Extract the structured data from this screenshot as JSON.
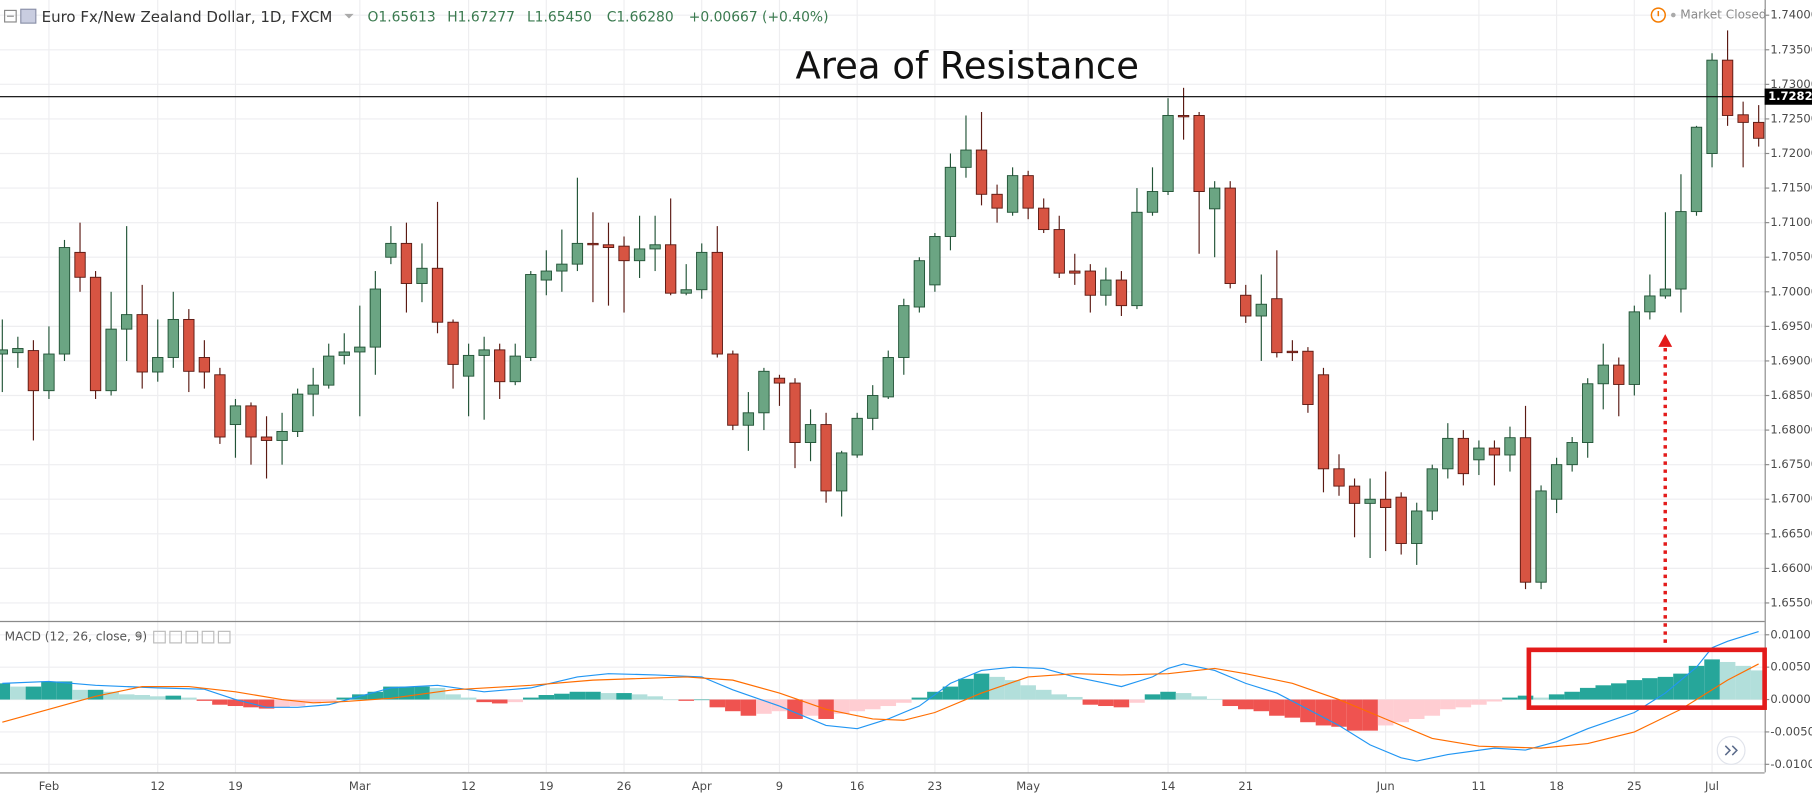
{
  "header": {
    "symbol": "Euro Fx/New Zealand Dollar, 1D, FXCM",
    "ohlc": [
      "O1.65613",
      "H1.67277",
      "L1.65450",
      "C1.66280",
      "+0.00667 (+0.40%)"
    ],
    "status": "Market Closed"
  },
  "chart_data": [
    {
      "type": "candlestick",
      "title": "Area of Resistance",
      "up_color": "#6ba583",
      "down_color": "#d75442",
      "up_border": "#225437",
      "down_border": "#5b1a13",
      "grid": true,
      "ylim": [
        1.6524,
        1.7422
      ],
      "yticks": [
        {
          "value": 1.655,
          "label": "1.65500"
        },
        {
          "value": 1.66,
          "label": "1.66000"
        },
        {
          "value": 1.665,
          "label": "1.66500"
        },
        {
          "value": 1.67,
          "label": "1.67000"
        },
        {
          "value": 1.675,
          "label": "1.67500"
        },
        {
          "value": 1.68,
          "label": "1.68000"
        },
        {
          "value": 1.685,
          "label": "1.68500"
        },
        {
          "value": 1.69,
          "label": "1.69000"
        },
        {
          "value": 1.695,
          "label": "1.69500"
        },
        {
          "value": 1.7,
          "label": "1.70000"
        },
        {
          "value": 1.705,
          "label": "1.70500"
        },
        {
          "value": 1.71,
          "label": "1.71000"
        },
        {
          "value": 1.715,
          "label": "1.71500"
        },
        {
          "value": 1.72,
          "label": "1.72000"
        },
        {
          "value": 1.725,
          "label": "1.72500"
        },
        {
          "value": 1.73,
          "label": "1.73000"
        },
        {
          "value": 1.735,
          "label": "1.73500"
        },
        {
          "value": 1.74,
          "label": "1.74000"
        }
      ],
      "xticks": [
        {
          "value": 3,
          "label": "Feb"
        },
        {
          "value": 10,
          "label": "12"
        },
        {
          "value": 15,
          "label": "19"
        },
        {
          "value": 23,
          "label": "Mar"
        },
        {
          "value": 30,
          "label": "12"
        },
        {
          "value": 35,
          "label": "19"
        },
        {
          "value": 40,
          "label": "26"
        },
        {
          "value": 45,
          "label": "Apr"
        },
        {
          "value": 50,
          "label": "9"
        },
        {
          "value": 55,
          "label": "16"
        },
        {
          "value": 60,
          "label": "23"
        },
        {
          "value": 66,
          "label": "May"
        },
        {
          "value": 75,
          "label": "14"
        },
        {
          "value": 80,
          "label": "21"
        },
        {
          "value": 89,
          "label": "Jun"
        },
        {
          "value": 95,
          "label": "11"
        },
        {
          "value": 100,
          "label": "18"
        },
        {
          "value": 105,
          "label": "25"
        },
        {
          "value": 110,
          "label": "Jul"
        }
      ],
      "hline": {
        "value": 1.72822,
        "label": "1.72822"
      },
      "open": [
        1.691,
        1.6912,
        1.6915,
        1.6857,
        1.691,
        1.7057,
        1.7021,
        1.6857,
        1.6946,
        1.6967,
        1.6884,
        1.6905,
        1.696,
        1.6905,
        1.688,
        1.6808,
        1.6835,
        1.679,
        1.6785,
        1.6798,
        1.6852,
        1.6865,
        1.6908,
        1.6913,
        1.692,
        1.705,
        1.707,
        1.7012,
        1.7034,
        1.6956,
        1.6878,
        1.6908,
        1.6916,
        1.687,
        1.6905,
        1.7017,
        1.703,
        1.704,
        1.707,
        1.7068,
        1.7066,
        1.7045,
        1.7062,
        1.7068,
        1.6998,
        1.7003,
        1.7057,
        1.691,
        1.6807,
        1.6825,
        1.6875,
        1.6868,
        1.6782,
        1.6808,
        1.6712,
        1.6764,
        1.6817,
        1.6848,
        1.6905,
        1.6978,
        1.701,
        1.708,
        1.718,
        1.7205,
        1.7141,
        1.7115,
        1.7168,
        1.7121,
        1.709,
        1.703,
        1.703,
        1.6995,
        1.7017,
        1.698,
        1.7115,
        1.7145,
        1.7255,
        1.7255,
        1.712,
        1.715,
        1.6995,
        1.6965,
        1.699,
        1.6914,
        1.6914,
        1.688,
        1.6744,
        1.6719,
        1.6694,
        1.67,
        1.6703,
        1.6636,
        1.6683,
        1.6744,
        1.6788,
        1.6757,
        1.6774,
        1.6764,
        1.6789,
        1.658,
        1.67,
        1.675,
        1.6782,
        1.6867,
        1.6894,
        1.6866,
        1.6971,
        1.6994,
        1.7004,
        1.7116,
        1.72,
        1.7335,
        1.7256,
        1.7245
      ],
      "high": [
        1.696,
        1.6935,
        1.693,
        1.695,
        1.7075,
        1.71,
        1.703,
        1.7,
        1.7095,
        1.701,
        1.696,
        1.7,
        1.6975,
        1.693,
        1.689,
        1.6845,
        1.684,
        1.682,
        1.6825,
        1.686,
        1.689,
        1.6925,
        1.694,
        1.698,
        1.703,
        1.7095,
        1.71,
        1.707,
        1.713,
        1.696,
        1.6925,
        1.6935,
        1.6925,
        1.6925,
        1.703,
        1.706,
        1.709,
        1.7165,
        1.7115,
        1.71,
        1.708,
        1.711,
        1.711,
        1.7135,
        1.704,
        1.707,
        1.7095,
        1.6915,
        1.6855,
        1.689,
        1.688,
        1.6875,
        1.683,
        1.6825,
        1.677,
        1.6825,
        1.6865,
        1.6915,
        1.699,
        1.705,
        1.7085,
        1.72,
        1.7255,
        1.726,
        1.7155,
        1.718,
        1.7175,
        1.7135,
        1.711,
        1.7055,
        1.704,
        1.7035,
        1.703,
        1.715,
        1.718,
        1.728,
        1.7295,
        1.726,
        1.716,
        1.716,
        1.701,
        1.7025,
        1.706,
        1.693,
        1.692,
        1.689,
        1.6765,
        1.673,
        1.673,
        1.674,
        1.671,
        1.6695,
        1.675,
        1.681,
        1.68,
        1.6785,
        1.6785,
        1.6805,
        1.6835,
        1.672,
        1.676,
        1.679,
        1.6875,
        1.6925,
        1.6905,
        1.698,
        1.7025,
        1.7115,
        1.717,
        1.724,
        1.7345,
        1.7378,
        1.7275,
        1.727
      ],
      "low": [
        1.6855,
        1.689,
        1.6785,
        1.6845,
        1.69,
        1.7,
        1.6845,
        1.685,
        1.69,
        1.686,
        1.687,
        1.689,
        1.6855,
        1.686,
        1.678,
        1.676,
        1.675,
        1.673,
        1.675,
        1.679,
        1.682,
        1.686,
        1.6895,
        1.682,
        1.688,
        1.704,
        1.697,
        1.6985,
        1.694,
        1.686,
        1.682,
        1.6815,
        1.6845,
        1.6865,
        1.69,
        1.6995,
        1.7,
        1.703,
        1.6985,
        1.698,
        1.697,
        1.702,
        1.703,
        1.6995,
        1.6995,
        1.699,
        1.6905,
        1.68,
        1.677,
        1.68,
        1.6835,
        1.6745,
        1.6755,
        1.6695,
        1.6675,
        1.676,
        1.68,
        1.6845,
        1.688,
        1.697,
        1.7,
        1.706,
        1.7165,
        1.7125,
        1.71,
        1.711,
        1.7105,
        1.7085,
        1.702,
        1.701,
        1.697,
        1.698,
        1.6965,
        1.6975,
        1.711,
        1.714,
        1.722,
        1.7055,
        1.705,
        1.7005,
        1.6955,
        1.69,
        1.6905,
        1.69,
        1.6825,
        1.671,
        1.6705,
        1.6645,
        1.6615,
        1.6625,
        1.662,
        1.6605,
        1.667,
        1.673,
        1.672,
        1.6735,
        1.672,
        1.674,
        1.657,
        1.657,
        1.668,
        1.674,
        1.676,
        1.683,
        1.682,
        1.685,
        1.696,
        1.699,
        1.697,
        1.711,
        1.718,
        1.724,
        1.718,
        1.721
      ],
      "close": [
        1.6916,
        1.6918,
        1.6857,
        1.691,
        1.7064,
        1.7021,
        1.6857,
        1.6946,
        1.6967,
        1.6884,
        1.6905,
        1.696,
        1.6885,
        1.6884,
        1.679,
        1.6835,
        1.679,
        1.6785,
        1.6798,
        1.6852,
        1.6865,
        1.6907,
        1.6913,
        1.692,
        1.7004,
        1.707,
        1.7012,
        1.7034,
        1.6956,
        1.6895,
        1.6908,
        1.6916,
        1.687,
        1.6907,
        1.7025,
        1.703,
        1.704,
        1.707,
        1.7068,
        1.7064,
        1.7045,
        1.7062,
        1.7068,
        1.6998,
        1.7003,
        1.7057,
        1.691,
        1.6807,
        1.6825,
        1.6885,
        1.6868,
        1.6782,
        1.6808,
        1.6712,
        1.6767,
        1.6817,
        1.685,
        1.6905,
        1.698,
        1.7045,
        1.708,
        1.718,
        1.7205,
        1.7141,
        1.7121,
        1.7168,
        1.7121,
        1.709,
        1.7027,
        1.7027,
        1.6995,
        1.7017,
        1.698,
        1.7115,
        1.7145,
        1.7255,
        1.7253,
        1.7145,
        1.715,
        1.7012,
        1.6965,
        1.6982,
        1.6912,
        1.6912,
        1.6837,
        1.6744,
        1.6719,
        1.6694,
        1.67,
        1.6688,
        1.6636,
        1.6683,
        1.6744,
        1.6788,
        1.6737,
        1.6774,
        1.6764,
        1.6789,
        1.658,
        1.6712,
        1.675,
        1.6782,
        1.6867,
        1.6894,
        1.6866,
        1.6971,
        1.6994,
        1.7004,
        1.7116,
        1.7238,
        1.7335,
        1.7255,
        1.7245,
        1.7222
      ]
    },
    {
      "type": "macd",
      "title": "MACD (12, 26, close, 9)",
      "ylim": [
        -0.01125,
        0.01196
      ],
      "yticks": [
        {
          "value": 0.01,
          "label": "0.0100"
        },
        {
          "value": 0.005,
          "label": "0.0050"
        },
        {
          "value": 0,
          "label": "0.0000"
        },
        {
          "value": -0.005,
          "label": "-0.0050"
        },
        {
          "value": -0.01,
          "label": "-0.0100"
        }
      ],
      "hist_colors": [
        "#26a69a",
        "#b2dfdb",
        "#ef5350",
        "#ffcdd2"
      ],
      "histogram": [
        0.0025,
        0.002,
        0.002,
        0.0028,
        0.0028,
        0.0015,
        0.0015,
        0.0012,
        0.0008,
        0.0007,
        0.0005,
        0.0006,
        0.0003,
        -0.0002,
        -0.0008,
        -0.001,
        -0.0012,
        -0.0014,
        -0.0012,
        -0.001,
        -0.0006,
        -0.0003,
        0.0003,
        0.0008,
        0.0012,
        0.002,
        0.002,
        0.002,
        0.0018,
        0.0008,
        0.0003,
        -0.0004,
        -0.0006,
        -0.0004,
        0.0003,
        0.0007,
        0.0009,
        0.0012,
        0.0012,
        0.001,
        0.001,
        0.0008,
        0.0005,
        0.0,
        -0.0002,
        0.0,
        -0.0012,
        -0.0018,
        -0.0025,
        -0.0022,
        -0.0018,
        -0.003,
        -0.0025,
        -0.003,
        -0.0022,
        -0.0018,
        -0.0015,
        -0.001,
        -0.0005,
        0.0003,
        0.0012,
        0.002,
        0.0032,
        0.004,
        0.0035,
        0.003,
        0.0022,
        0.0015,
        0.0008,
        0.0004,
        -0.0008,
        -0.001,
        -0.0012,
        -0.0005,
        0.0008,
        0.0012,
        0.001,
        0.0005,
        0.0001,
        -0.001,
        -0.0015,
        -0.0018,
        -0.0025,
        -0.0028,
        -0.0035,
        -0.004,
        -0.0042,
        -0.0048,
        -0.0048,
        -0.004,
        -0.0035,
        -0.003,
        -0.0025,
        -0.0015,
        -0.0012,
        -0.0008,
        -0.0003,
        0.0003,
        0.0006,
        0.0003,
        0.0008,
        0.0012,
        0.0018,
        0.0022,
        0.0025,
        0.003,
        0.0033,
        0.0035,
        0.004,
        0.0052,
        0.0062,
        0.0058,
        0.0052,
        0.0045
      ],
      "series": [
        {
          "color": "#2196f3",
          "x": [
            0,
            3,
            6,
            10,
            13,
            15,
            17,
            19,
            21,
            23,
            25,
            28,
            31,
            34,
            37,
            39,
            42,
            45,
            47,
            50,
            53,
            55,
            57,
            59,
            61,
            63,
            65,
            67,
            69,
            71,
            72,
            74,
            75,
            76,
            78,
            80,
            82,
            84,
            86,
            88,
            90,
            91,
            93,
            96,
            98,
            100,
            102,
            105,
            107,
            109,
            110,
            111,
            113
          ],
          "values": [
            0.0025,
            0.0028,
            0.0022,
            0.0018,
            0.0016,
            0.0,
            -0.0012,
            -0.0012,
            -0.0008,
            0.0005,
            0.0018,
            0.0022,
            0.0012,
            0.0018,
            0.0035,
            0.004,
            0.0038,
            0.0035,
            0.0015,
            -0.001,
            -0.004,
            -0.0045,
            -0.003,
            -0.001,
            0.0025,
            0.0045,
            0.005,
            0.0048,
            0.0035,
            0.0025,
            0.002,
            0.0035,
            0.0048,
            0.0055,
            0.0045,
            0.0025,
            0.001,
            -0.0015,
            -0.004,
            -0.007,
            -0.009,
            -0.0095,
            -0.0085,
            -0.0075,
            -0.0078,
            -0.0065,
            -0.0045,
            -0.002,
            0.001,
            0.005,
            0.008,
            0.009,
            0.0105
          ]
        },
        {
          "color": "#ff6d00",
          "x": [
            0,
            3,
            6,
            9,
            12,
            15,
            18,
            20,
            22,
            25,
            29,
            34,
            38,
            44,
            47,
            50,
            53,
            56,
            58,
            60,
            63,
            66,
            69,
            72,
            75,
            78,
            80,
            83,
            86,
            89,
            92,
            95,
            99,
            102,
            105,
            108,
            111,
            113
          ],
          "values": [
            -0.0035,
            -0.0015,
            0.0005,
            0.002,
            0.002,
            0.0012,
            0.0,
            -0.0005,
            -0.0003,
            0.0002,
            0.0015,
            0.0022,
            0.003,
            0.0035,
            0.003,
            0.001,
            -0.0015,
            -0.003,
            -0.0032,
            -0.002,
            0.001,
            0.0035,
            0.004,
            0.0038,
            0.004,
            0.0048,
            0.004,
            0.0025,
            0.0,
            -0.003,
            -0.006,
            -0.0072,
            -0.0075,
            -0.0068,
            -0.005,
            -0.0015,
            0.003,
            0.0055
          ]
        }
      ]
    }
  ]
}
